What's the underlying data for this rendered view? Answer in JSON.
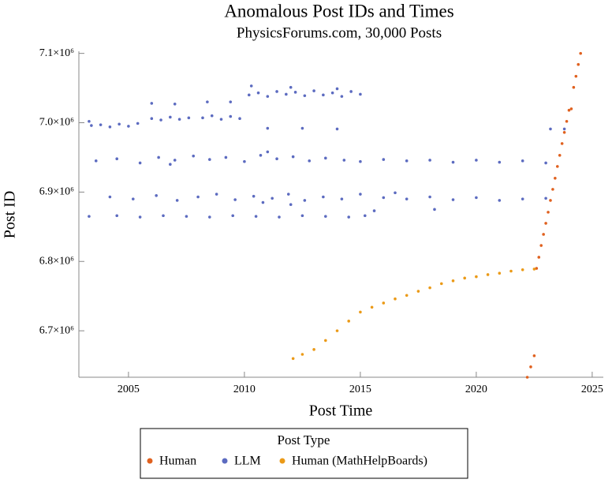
{
  "chart_data": {
    "type": "scatter",
    "title": "Anomalous Post IDs and Times",
    "subtitle": "PhysicsForums.com, 30,000 Posts",
    "x_label": "Post Time",
    "y_label": "Post ID",
    "legend_title": "Post Type",
    "legend": "bottom",
    "xlim": [
      2002.86,
      2025.48
    ],
    "ylim": [
      6633000,
      7103000
    ],
    "xticks": [
      2005,
      2010,
      2015,
      2020,
      2025
    ],
    "yticks": [
      {
        "value": 6700000,
        "label": "6.7×10⁶"
      },
      {
        "value": 6800000,
        "label": "6.8×10⁶"
      },
      {
        "value": 6900000,
        "label": "6.9×10⁶"
      },
      {
        "value": 7000000,
        "label": "7.0×10⁶"
      },
      {
        "value": 7100000,
        "label": "7.1×10⁶"
      }
    ],
    "series": [
      {
        "name": "Human",
        "color": "#e0611f",
        "x": [
          2022.2,
          2022.35,
          2022.5,
          2022.6,
          2022.7,
          2022.8,
          2022.9,
          2023.0,
          2023.1,
          2023.2,
          2023.3,
          2023.4,
          2023.5,
          2023.6,
          2023.7,
          2023.8,
          2023.9,
          2024.0,
          2024.1,
          2024.2,
          2024.3,
          2024.4,
          2024.5
        ],
        "values": [
          6633000,
          6648000,
          6664000,
          6790000,
          6806000,
          6823000,
          6839000,
          6855000,
          6871000,
          6888000,
          6904000,
          6920000,
          6937000,
          6953000,
          6970000,
          6986000,
          7002000,
          7018000,
          7020000,
          7051000,
          7067000,
          7084000,
          7100000
        ]
      },
      {
        "name": "LLM",
        "color": "#5c6bc0",
        "x": [
          2003.3,
          2003.4,
          2003.8,
          2004.2,
          2004.6,
          2005.0,
          2005.4,
          2006.0,
          2006.4,
          2006.8,
          2007.2,
          2007.6,
          2008.2,
          2008.6,
          2009.0,
          2009.4,
          2009.8,
          2006.0,
          2007.0,
          2008.4,
          2009.4,
          2010.2,
          2010.6,
          2011.0,
          2011.4,
          2011.8,
          2012.2,
          2012.6,
          2013.0,
          2013.4,
          2013.8,
          2014.2,
          2014.6,
          2015.0,
          2010.3,
          2012.0,
          2014.0,
          2011.0,
          2012.5,
          2014.0,
          2023.2,
          2023.8,
          2003.6,
          2004.5,
          2005.5,
          2006.3,
          2007.0,
          2007.8,
          2008.5,
          2009.2,
          2010.0,
          2010.7,
          2011.4,
          2012.1,
          2012.8,
          2013.5,
          2014.3,
          2015.0,
          2016.0,
          2017.0,
          2018.0,
          2019.0,
          2020.0,
          2021.0,
          2022.0,
          2023.0,
          2006.8,
          2011.0,
          2004.2,
          2005.2,
          2006.2,
          2007.1,
          2008.0,
          2008.8,
          2009.6,
          2010.4,
          2011.2,
          2011.9,
          2012.6,
          2013.4,
          2014.2,
          2015.0,
          2016.0,
          2017.0,
          2018.0,
          2019.0,
          2020.0,
          2021.0,
          2022.0,
          2023.0,
          2016.5,
          2010.8,
          2012.0,
          2003.3,
          2004.5,
          2005.5,
          2006.5,
          2007.5,
          2008.5,
          2009.5,
          2010.5,
          2011.5,
          2012.5,
          2013.5,
          2014.5,
          2015.2,
          2015.6,
          2018.2
        ],
        "values": [
          7002000,
          6996000,
          6997000,
          6994000,
          6998000,
          6995000,
          6999000,
          7006000,
          7004000,
          7008000,
          7005000,
          7007000,
          7007000,
          7010000,
          7005000,
          7009000,
          7006000,
          7028000,
          7027000,
          7030000,
          7030000,
          7040000,
          7043000,
          7038000,
          7045000,
          7041000,
          7044000,
          7039000,
          7046000,
          7040000,
          7043000,
          7038000,
          7045000,
          7041000,
          7053000,
          7051000,
          7049000,
          6992000,
          6992000,
          6991000,
          6991000,
          6991000,
          6945000,
          6948000,
          6942000,
          6950000,
          6946000,
          6952000,
          6947000,
          6950000,
          6944000,
          6953000,
          6948000,
          6951000,
          6945000,
          6949000,
          6946000,
          6944000,
          6947000,
          6945000,
          6946000,
          6943000,
          6946000,
          6943000,
          6945000,
          6942000,
          6940000,
          6958000,
          6893000,
          6890000,
          6895000,
          6888000,
          6893000,
          6897000,
          6889000,
          6894000,
          6891000,
          6897000,
          6888000,
          6893000,
          6890000,
          6897000,
          6892000,
          6890000,
          6893000,
          6889000,
          6892000,
          6888000,
          6890000,
          6891000,
          6899000,
          6885000,
          6882000,
          6865000,
          6866000,
          6864000,
          6866000,
          6865000,
          6864000,
          6866000,
          6865000,
          6864000,
          6866000,
          6865000,
          6864000,
          6866000,
          6873000,
          6875000
        ]
      },
      {
        "name": "Human (MathHelpBoards)",
        "color": "#eb9a17",
        "x": [
          2012.1,
          2012.5,
          2013.0,
          2013.5,
          2014.0,
          2014.5,
          2015.0,
          2015.5,
          2016.0,
          2016.5,
          2017.0,
          2017.5,
          2018.0,
          2018.5,
          2019.0,
          2019.5,
          2020.0,
          2020.5,
          2021.0,
          2021.5,
          2022.0,
          2022.5
        ],
        "values": [
          6660000,
          6666000,
          6673000,
          6686000,
          6700000,
          6714000,
          6727000,
          6734000,
          6740000,
          6746000,
          6751000,
          6757000,
          6762000,
          6768000,
          6772000,
          6776000,
          6778000,
          6781000,
          6783000,
          6786000,
          6788000,
          6789000
        ]
      }
    ]
  }
}
